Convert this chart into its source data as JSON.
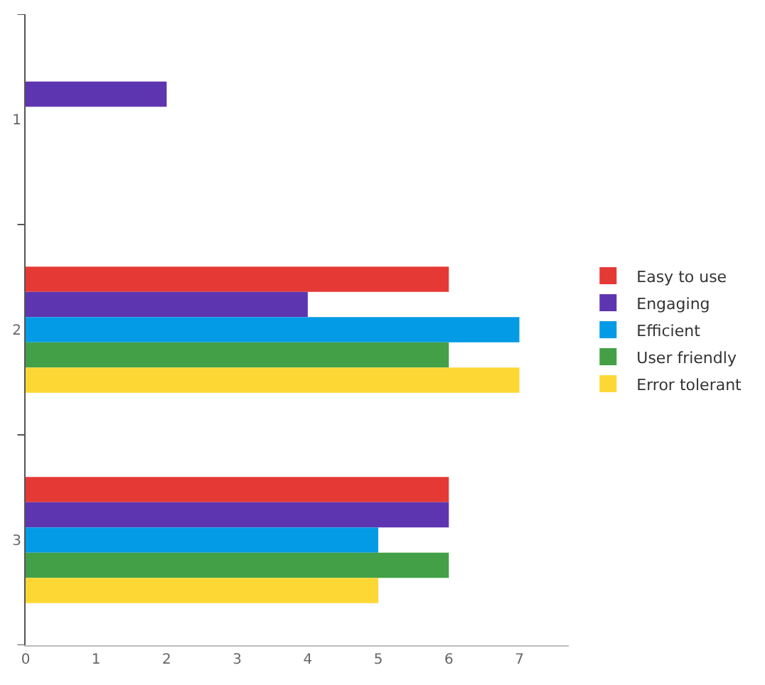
{
  "chart_data": {
    "type": "bar",
    "orientation": "horizontal",
    "categories": [
      "1",
      "2",
      "3"
    ],
    "series": [
      {
        "name": "Easy to use",
        "color": "#e53935",
        "values": [
          null,
          6,
          6
        ]
      },
      {
        "name": "Engaging",
        "color": "#5e35b1",
        "values": [
          2,
          4,
          6
        ]
      },
      {
        "name": "Efficient",
        "color": "#039be5",
        "values": [
          null,
          7,
          5
        ]
      },
      {
        "name": "User friendly",
        "color": "#43a047",
        "values": [
          null,
          6,
          6
        ]
      },
      {
        "name": "Error tolerant",
        "color": "#fdd835",
        "values": [
          null,
          7,
          5
        ]
      }
    ],
    "xlim": [
      0,
      7.7
    ],
    "xticks": [
      0,
      1,
      2,
      3,
      4,
      5,
      6,
      7
    ],
    "grid": false,
    "legend": "right"
  }
}
